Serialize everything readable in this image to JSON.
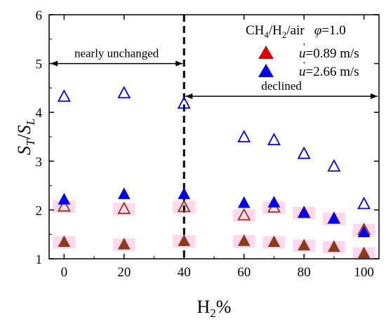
{
  "chart_data": {
    "type": "scatter",
    "xlabel": {
      "main": "H",
      "sub": "2",
      "tail": "%"
    },
    "ylabel": {
      "S": "S",
      "sub_T": "T",
      "slash": "/",
      "S2": "S",
      "sub_L": "L"
    },
    "xlim": [
      -5,
      105
    ],
    "ylim": [
      1,
      6
    ],
    "xticks": [
      0,
      20,
      40,
      60,
      80,
      100
    ],
    "yticks": [
      1,
      2,
      3,
      4,
      5,
      6
    ],
    "xtick_labels": [
      "0",
      "20",
      "40",
      "60",
      "80",
      "100"
    ],
    "ytick_labels": [
      "1",
      "2",
      "3",
      "4",
      "5",
      "6"
    ],
    "grid": false,
    "legend": {
      "position": "top-right",
      "header": {
        "mix_prefix": "CH",
        "sub1": "4",
        "slash1": "/H",
        "sub2": "2",
        "mix_suffix": "/air",
        "phi_symbol": "φ",
        "phi_value": "=1.0"
      },
      "entries": [
        {
          "symbol": "u",
          "value": "=0.89 m/s",
          "color": "#e00000"
        },
        {
          "symbol": "u",
          "value": "=2.66 m/s",
          "color": "#0000ee"
        }
      ]
    },
    "annotations": {
      "vline_x": 40,
      "left_arrow": {
        "text": "nearly unchanged",
        "x_from": -5,
        "x_to": 40,
        "y": 5.0
      },
      "right_arrow": {
        "text": "declined",
        "x_from": 40,
        "x_to": 105,
        "y": 4.33
      }
    },
    "series": [
      {
        "marker": "filled-triangle",
        "color": "#8b3a1a",
        "x": [
          0,
          20,
          40,
          60,
          70,
          80,
          90,
          100
        ],
        "y": [
          1.35,
          1.3,
          1.37,
          1.37,
          1.35,
          1.28,
          1.25,
          1.12
        ]
      },
      {
        "marker": "open-triangle",
        "color": "#8b3a1a",
        "x": [
          0,
          20,
          40,
          60,
          70,
          80,
          90,
          100
        ],
        "y": [
          2.08,
          2.03,
          2.07,
          1.9,
          2.06,
          1.95,
          1.83,
          1.6
        ]
      },
      {
        "marker": "filled-triangle",
        "color": "#0000ee",
        "x": [
          0,
          20,
          40,
          60,
          70,
          80,
          90,
          100
        ],
        "y": [
          2.22,
          2.33,
          2.33,
          2.15,
          2.16,
          1.95,
          1.83,
          1.55
        ]
      },
      {
        "marker": "open-triangle",
        "color": "#0000ee",
        "x": [
          0,
          20,
          40,
          60,
          70,
          80,
          90,
          100
        ],
        "y": [
          4.33,
          4.4,
          4.19,
          3.5,
          3.44,
          3.16,
          2.9,
          2.13
        ]
      }
    ],
    "highlight_color": "#ffd8ee"
  }
}
